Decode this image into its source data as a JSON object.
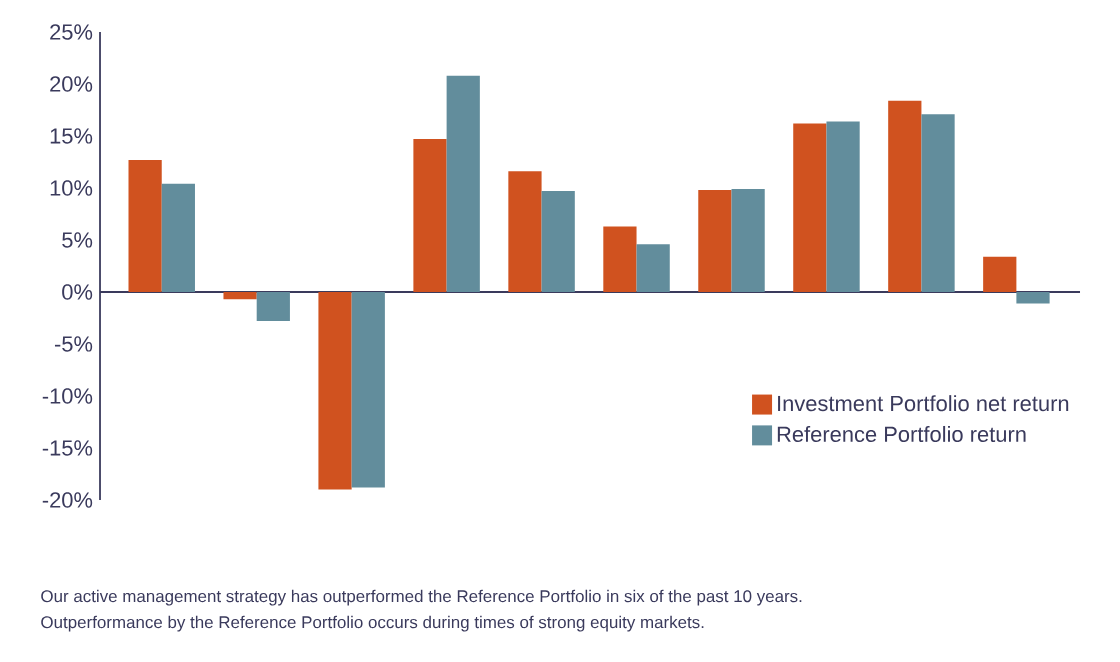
{
  "chart_data": {
    "type": "bar",
    "categories": [
      null,
      null,
      null,
      null,
      null,
      null,
      null,
      null,
      null,
      null
    ],
    "series": [
      {
        "name": "Investment Portfolio net return",
        "color": "#d0521f",
        "values": [
          12.7,
          -0.7,
          -19.0,
          14.7,
          11.6,
          6.3,
          9.8,
          16.2,
          18.4,
          3.4
        ]
      },
      {
        "name": "Reference Portfolio return",
        "color": "#628d9c",
        "values": [
          10.4,
          -2.8,
          -18.8,
          20.8,
          9.7,
          4.6,
          9.9,
          16.4,
          17.1,
          -1.1
        ]
      }
    ],
    "ylim": [
      -20,
      25
    ],
    "yticks": [
      {
        "value": -20,
        "label": "-20%"
      },
      {
        "value": -15,
        "label": "-15%"
      },
      {
        "value": -10,
        "label": "-10%"
      },
      {
        "value": -5,
        "label": "-5%"
      },
      {
        "value": 0,
        "label": "0%"
      },
      {
        "value": 5,
        "label": "5%"
      },
      {
        "value": 10,
        "label": "10%"
      },
      {
        "value": 15,
        "label": "15%"
      },
      {
        "value": 20,
        "label": "20%"
      },
      {
        "value": 25,
        "label": "25%"
      }
    ],
    "tick_labels": "y",
    "legend": "right",
    "annotations": [
      "Our active management strategy has outperformed the Reference Portfolio in six of the past 10 years.",
      "Outperformance by the Reference Portfolio occurs during times of strong equity markets."
    ]
  }
}
